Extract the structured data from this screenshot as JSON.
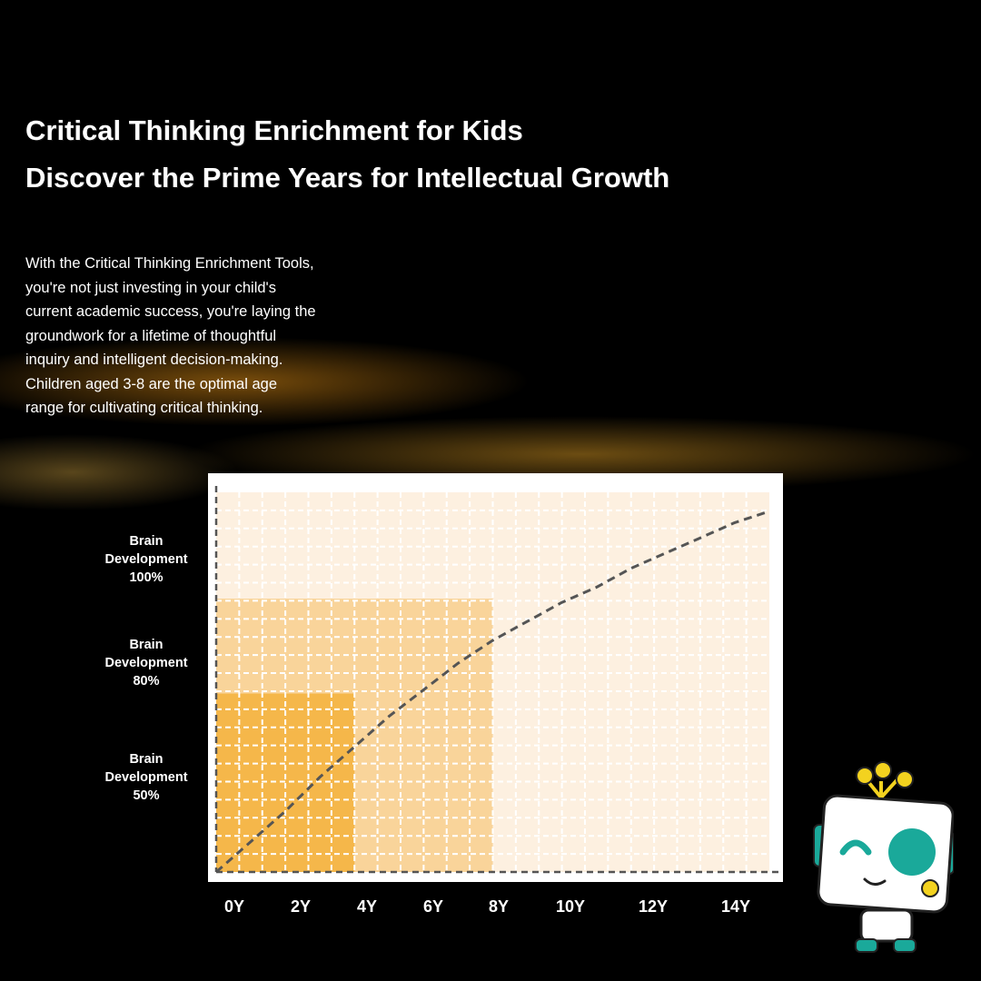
{
  "header": {
    "title_lines": [
      "Critical Thinking Enrichment for Kids",
      "Discover the Prime Years for Intellectual Growth"
    ]
  },
  "intro": {
    "lines": [
      "With the Critical Thinking Enrichment Tools,",
      "you're not just investing in your child's",
      "current academic success, you're laying the",
      "groundwork for a lifetime of thoughtful",
      "inquiry and intelligent decision-making.",
      "Children aged 3-8 are the optimal age",
      "range for cultivating critical thinking."
    ]
  },
  "chart_data": {
    "type": "line",
    "title": "",
    "xlabel": "",
    "ylabel": "",
    "x_tick_labels": [
      "0Y",
      "2Y",
      "4Y",
      "6Y",
      "8Y",
      "10Y",
      "12Y",
      "14Y"
    ],
    "y_level_labels": [
      {
        "lines": [
          "Brain",
          "Development",
          "100%"
        ],
        "value": 100
      },
      {
        "lines": [
          "Brain",
          "Development",
          "80%"
        ],
        "value": 80
      },
      {
        "lines": [
          "Brain",
          "Development",
          "50%"
        ],
        "value": 50
      }
    ],
    "xlim": [
      0,
      16
    ],
    "ylim": [
      0,
      100
    ],
    "series": [
      {
        "line_style": "dashed",
        "color": "#555555",
        "x": [
          0,
          1,
          2,
          3,
          4,
          5,
          6,
          7,
          8,
          9,
          10,
          11,
          12,
          13,
          14,
          15,
          16
        ],
        "y": [
          0,
          8,
          16,
          25,
          33,
          41,
          48,
          55,
          61,
          66,
          71,
          75,
          80,
          84,
          88,
          92,
          95
        ]
      }
    ],
    "shaded_regions": [
      {
        "x_end": 4,
        "y_top": 47,
        "color": "#f5b74a"
      },
      {
        "x_end": 8,
        "y_top": 72,
        "color": "#f9d49a"
      },
      {
        "x_end": 16,
        "y_top": 100,
        "color": "#fdf0e0"
      }
    ],
    "grid": true
  },
  "colors": {
    "background": "#000000",
    "accent_glow": "#e8a030",
    "mascot_teal": "#1aa99a",
    "mascot_yellow": "#f3d21f"
  },
  "mascot": {
    "icon": "robot-mascot-icon"
  }
}
